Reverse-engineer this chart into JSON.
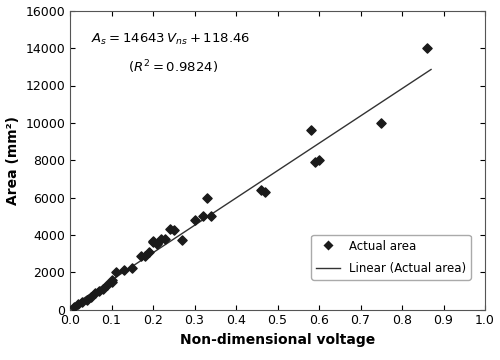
{
  "scatter_x": [
    0.01,
    0.02,
    0.03,
    0.04,
    0.05,
    0.06,
    0.07,
    0.08,
    0.09,
    0.1,
    0.1,
    0.11,
    0.13,
    0.15,
    0.17,
    0.18,
    0.19,
    0.2,
    0.2,
    0.21,
    0.22,
    0.23,
    0.24,
    0.25,
    0.27,
    0.3,
    0.32,
    0.33,
    0.34,
    0.46,
    0.47,
    0.58,
    0.59,
    0.6,
    0.75,
    0.86
  ],
  "scatter_y": [
    150,
    300,
    400,
    500,
    700,
    900,
    1000,
    1100,
    1300,
    1500,
    1600,
    2000,
    2100,
    2250,
    2850,
    2850,
    3100,
    3600,
    3700,
    3500,
    3800,
    3800,
    4300,
    4250,
    3750,
    4800,
    5000,
    6000,
    5000,
    6400,
    6300,
    9600,
    7900,
    8000,
    10000,
    14000
  ],
  "slope": 14643,
  "intercept": 118.46,
  "r2": 0.9824,
  "x_min": 0.0,
  "x_max": 1.0,
  "line_x_end": 0.87,
  "y_min": 0,
  "y_max": 16000,
  "xlabel": "Non-dimensional voltage",
  "ylabel": "Area (mm²)",
  "marker_color": "#1a1a1a",
  "line_color": "#333333",
  "legend_scatter": "Actual area",
  "legend_line": "Linear (Actual area)",
  "annotation_line1": "$A_s = 14643\\,V_{ns} + 118.46$",
  "annotation_line2": "$(R^2 = 0.9824)$",
  "xticks": [
    0.0,
    0.1,
    0.2,
    0.3,
    0.4,
    0.5,
    0.6,
    0.7,
    0.8,
    0.9,
    1.0
  ],
  "yticks": [
    0,
    2000,
    4000,
    6000,
    8000,
    10000,
    12000,
    14000,
    16000
  ]
}
